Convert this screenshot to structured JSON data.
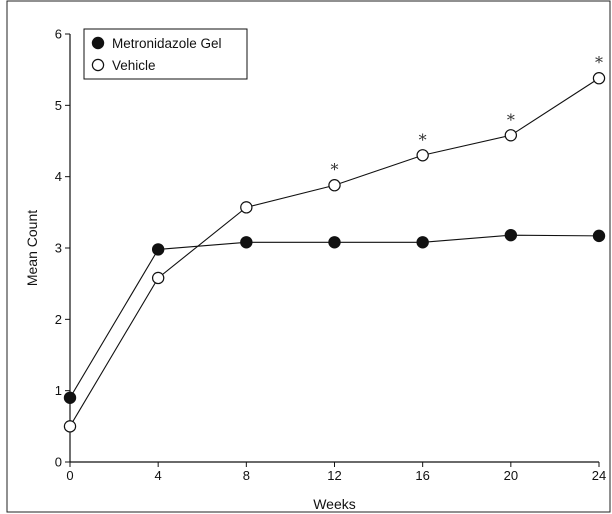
{
  "chart_data": {
    "type": "line",
    "title": "",
    "xlabel": "Weeks",
    "ylabel": "Mean Count",
    "xlim": [
      0,
      24
    ],
    "ylim": [
      0,
      6
    ],
    "x": [
      0,
      4,
      8,
      12,
      16,
      20,
      24
    ],
    "x_ticks": [
      "0",
      "4",
      "8",
      "12",
      "16",
      "20",
      "24"
    ],
    "y_ticks": [
      "0",
      "1",
      "2",
      "3",
      "4",
      "5",
      "6"
    ],
    "grid": false,
    "legend_position": "top-left",
    "series": [
      {
        "name": "Metronidazole Gel",
        "marker": "filled-circle",
        "values": [
          0.9,
          2.98,
          3.08,
          3.08,
          3.08,
          3.18,
          3.17
        ]
      },
      {
        "name": "Vehicle",
        "marker": "open-circle",
        "values": [
          0.5,
          2.58,
          3.57,
          3.88,
          4.3,
          4.58,
          5.38
        ]
      }
    ],
    "annotations": [
      {
        "x": 12,
        "y": 3.88,
        "text": "*"
      },
      {
        "x": 16,
        "y": 4.3,
        "text": "*"
      },
      {
        "x": 20,
        "y": 4.58,
        "text": "*"
      },
      {
        "x": 24,
        "y": 5.38,
        "text": "*"
      }
    ]
  }
}
